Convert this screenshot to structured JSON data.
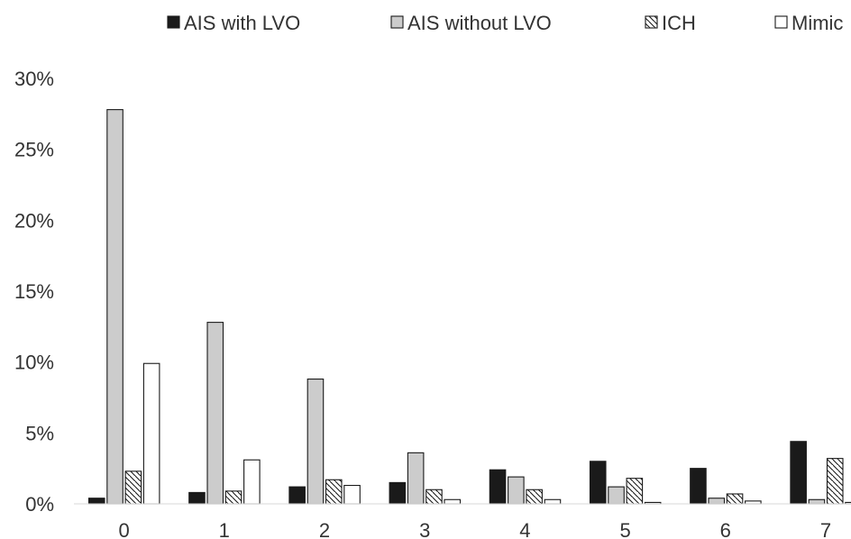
{
  "chart_data": {
    "type": "bar",
    "categories": [
      "0",
      "1",
      "2",
      "3",
      "4",
      "5",
      "6",
      "7"
    ],
    "series": [
      {
        "name": "AIS with LVO",
        "values": [
          0.4,
          0.8,
          1.2,
          1.5,
          2.4,
          3.0,
          2.5,
          4.4
        ],
        "fill": "#1a1a1a",
        "pattern": "solid"
      },
      {
        "name": "AIS without LVO",
        "values": [
          27.8,
          12.8,
          8.8,
          3.6,
          1.9,
          1.2,
          0.4,
          0.3
        ],
        "fill": "#cccccc",
        "pattern": "solid"
      },
      {
        "name": "ICH",
        "values": [
          2.3,
          0.9,
          1.7,
          1.0,
          1.0,
          1.8,
          0.7,
          3.2
        ],
        "fill": "#ffffff",
        "pattern": "hatch"
      },
      {
        "name": "Mimic",
        "values": [
          9.9,
          3.1,
          1.3,
          0.3,
          0.3,
          0.1,
          0.2,
          0.1
        ],
        "fill": "#ffffff",
        "pattern": "outline"
      }
    ],
    "yticks": [
      "0%",
      "5%",
      "10%",
      "15%",
      "20%",
      "25%",
      "30%"
    ],
    "ylim": [
      0,
      30
    ],
    "title": "",
    "xlabel": "",
    "ylabel": "",
    "grid": false,
    "legend": "top"
  }
}
